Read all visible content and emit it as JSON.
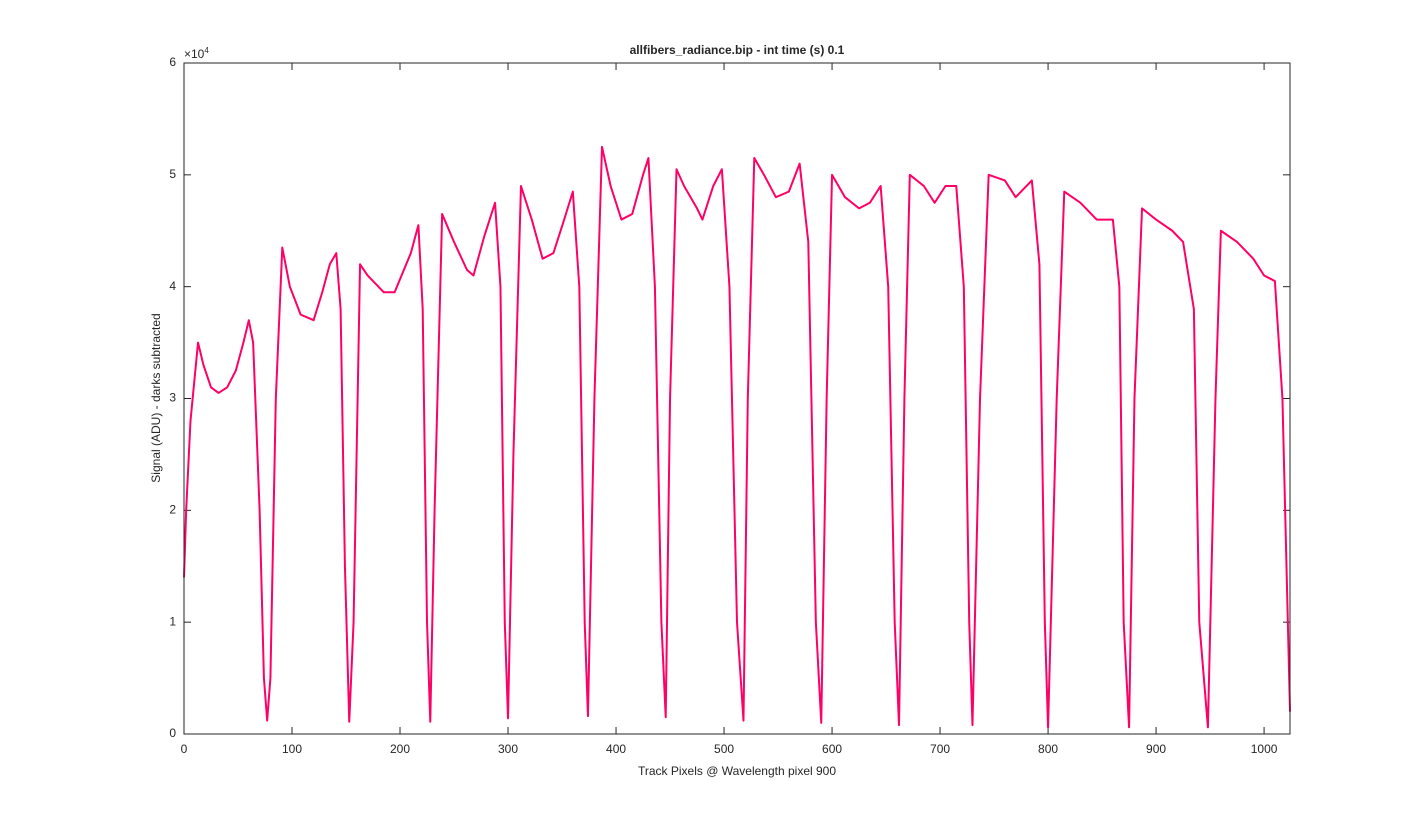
{
  "chart_data": {
    "type": "line",
    "title": "allfibers_radiance.bip - int time (s) 0.1",
    "x_label": "Track Pixels @ Wavelength pixel 900",
    "y_label": "Signal (ADU) - darks subtracted",
    "y_multiplier": {
      "base": "×10",
      "exponent": "4"
    },
    "color": "#ff0066",
    "xlim": [
      0,
      1024
    ],
    "ylim": [
      0,
      60000
    ],
    "xticks": [
      0,
      100,
      200,
      300,
      400,
      500,
      600,
      700,
      800,
      900,
      1000
    ],
    "yticks": [
      {
        "value": 0,
        "label": "0"
      },
      {
        "value": 10000,
        "label": "1"
      },
      {
        "value": 20000,
        "label": "2"
      },
      {
        "value": 30000,
        "label": "3"
      },
      {
        "value": 40000,
        "label": "4"
      },
      {
        "value": 50000,
        "label": "5"
      },
      {
        "value": 60000,
        "label": "6"
      }
    ],
    "x": [
      0,
      2,
      6,
      13,
      18,
      25,
      32,
      40,
      48,
      55,
      60,
      64,
      70,
      74,
      77,
      80,
      85,
      91,
      98,
      108,
      120,
      128,
      135,
      141,
      145,
      149,
      153,
      157,
      163,
      170,
      185,
      195,
      210,
      217,
      221,
      225,
      228,
      232,
      239,
      250,
      262,
      268,
      278,
      288,
      293,
      297,
      300,
      305,
      312,
      322,
      332,
      342,
      352,
      360,
      366,
      371,
      374,
      380,
      387,
      395,
      405,
      415,
      425,
      430,
      436,
      442,
      446,
      450,
      456,
      463,
      475,
      480,
      490,
      498,
      505,
      512,
      518,
      522,
      528,
      537,
      548,
      560,
      570,
      578,
      585,
      590,
      595,
      600,
      612,
      625,
      635,
      645,
      652,
      658,
      662,
      667,
      672,
      685,
      695,
      705,
      715,
      722,
      727,
      730,
      737,
      745,
      760,
      770,
      785,
      792,
      797,
      800,
      808,
      815,
      830,
      845,
      860,
      866,
      870,
      875,
      880,
      887,
      900,
      915,
      925,
      935,
      940,
      948,
      955,
      960,
      975,
      990,
      1000,
      1010,
      1017,
      1024
    ],
    "values": [
      14000,
      20000,
      28000,
      35000,
      33000,
      31000,
      30500,
      31000,
      32500,
      35000,
      37000,
      35000,
      20000,
      5000,
      1200,
      5000,
      30000,
      43500,
      40000,
      37500,
      37000,
      39500,
      42000,
      43000,
      38000,
      15000,
      1100,
      10000,
      42000,
      41000,
      39500,
      39500,
      43000,
      45500,
      38000,
      10000,
      1100,
      20000,
      46500,
      44000,
      41500,
      41000,
      44500,
      47500,
      40000,
      10000,
      1400,
      25000,
      49000,
      46000,
      42500,
      43000,
      46000,
      48500,
      40000,
      10000,
      1600,
      30000,
      52500,
      49000,
      46000,
      46500,
      50000,
      51500,
      40000,
      10000,
      1500,
      30000,
      50500,
      49000,
      47000,
      46000,
      49000,
      50500,
      40000,
      10000,
      1200,
      30000,
      51500,
      50000,
      48000,
      48500,
      51000,
      44000,
      10000,
      1000,
      30000,
      50000,
      48000,
      47000,
      47500,
      49000,
      40000,
      10000,
      800,
      30000,
      50000,
      49000,
      47500,
      49000,
      49000,
      40000,
      10000,
      800,
      30000,
      50000,
      49500,
      48000,
      49500,
      42000,
      10000,
      600,
      30000,
      48500,
      47500,
      46000,
      46000,
      40000,
      10000,
      600,
      30000,
      47000,
      46000,
      45000,
      44000,
      38000,
      10000,
      600,
      30000,
      45000,
      44000,
      42500,
      41000,
      40500,
      30000,
      2000
    ]
  }
}
